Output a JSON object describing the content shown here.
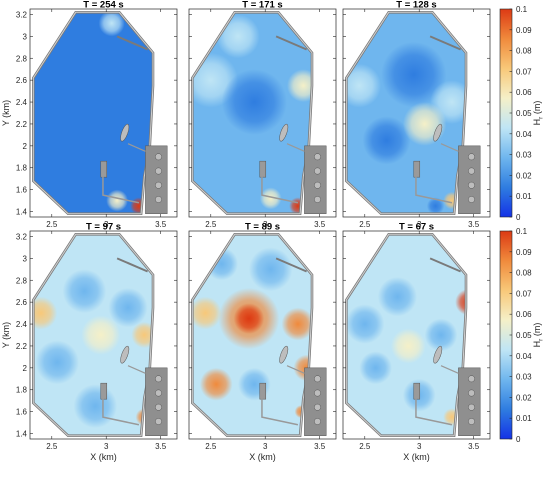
{
  "chart_data": {
    "type": "heatmap",
    "panels": [
      {
        "title": "T = 254 s",
        "regime": "calm"
      },
      {
        "title": "T = 171 s",
        "regime": "lowmid"
      },
      {
        "title": "T = 128 s",
        "regime": "mid"
      },
      {
        "title": "T = 97 s",
        "regime": "mid2"
      },
      {
        "title": "T = 89 s",
        "regime": "high"
      },
      {
        "title": "T = 67 s",
        "regime": "high2"
      }
    ],
    "xlabel": "X (km)",
    "ylabel": "Y (km)",
    "xlim": [
      2.3,
      3.65
    ],
    "ylim": [
      1.35,
      3.25
    ],
    "xticks": [
      "2.5",
      "3",
      "3.5"
    ],
    "xtick_values": [
      2.5,
      3.0,
      3.5
    ],
    "yticks": [
      "1.4",
      "1.6",
      "1.8",
      "2",
      "2.2",
      "2.4",
      "2.6",
      "2.8",
      "3",
      "3.2"
    ],
    "ytick_values": [
      1.4,
      1.6,
      1.8,
      2.0,
      2.2,
      2.4,
      2.6,
      2.8,
      3.0,
      3.2
    ],
    "colorbar": {
      "label": "H",
      "label_sub": "r",
      "label_unit": " (m)",
      "range": [
        0,
        0.1
      ],
      "ticks": [
        "0",
        "0.01",
        "0.02",
        "0.03",
        "0.04",
        "0.05",
        "0.06",
        "0.07",
        "0.08",
        "0.09",
        "0.1"
      ],
      "colors": [
        "#1432e6",
        "#2f7de0",
        "#6fb6ee",
        "#bfe5f5",
        "#f5f0c8",
        "#f8c879",
        "#f08a3c",
        "#dc3a14"
      ]
    },
    "grid": false
  }
}
